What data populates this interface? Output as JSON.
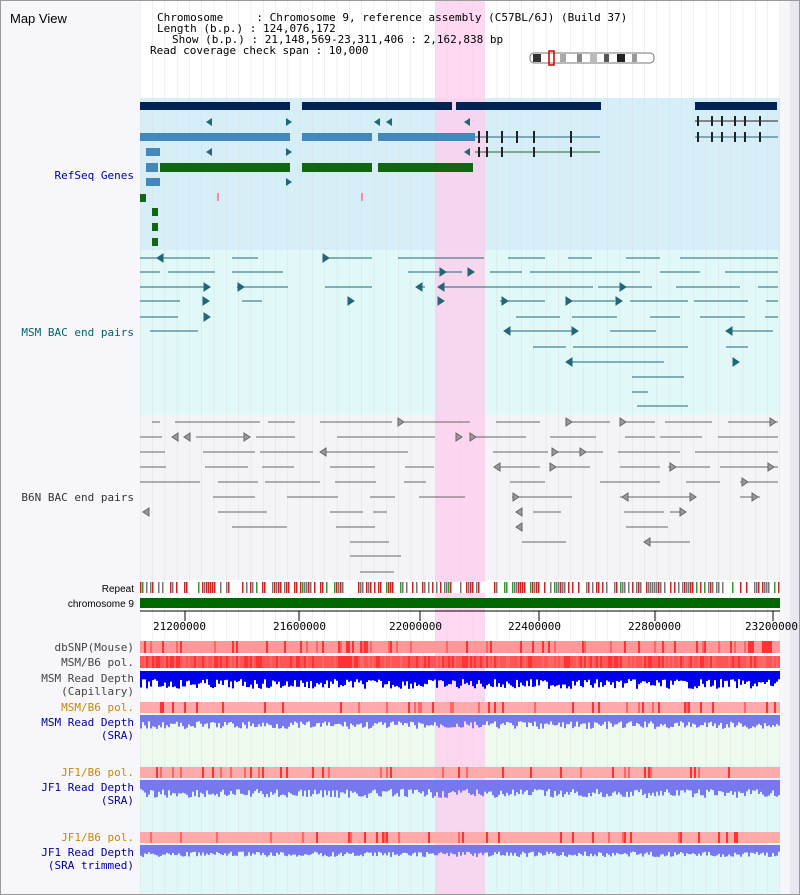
{
  "title": "Map View",
  "header": {
    "chromosome": "Chromosome     : Chromosome 9, reference assembly (C57BL/6J) (Build 37)",
    "length": "Length (b.p.) : 124,076,172",
    "show": "Show (b.p.) : 21,148,569-23,311,406 : 2,162,838 bp",
    "coverage": "Read coverage check span : 10,000"
  },
  "tracks": {
    "refseq": "RefSeq Genes",
    "msm_bac": "MSM BAC end pairs",
    "b6n_bac": "B6N BAC end pairs",
    "repeat": "Repeat",
    "chromosome": "chromosome 9",
    "dbsnp": "dbSNP(Mouse)",
    "msm_pol": "MSM/B6 pol.",
    "msm_cap_1": "MSM Read Depth",
    "msm_cap_2": "(Capillary)",
    "msm_sra_pol": "MSM/B6 pol.",
    "msm_sra_1": "MSM Read Depth",
    "msm_sra_2": "(SRA)",
    "jf1_pol": "JF1/B6 pol.",
    "jf1_sra_1": "JF1 Read Depth",
    "jf1_sra_2": "(SRA)",
    "jf1t_pol": "JF1/B6 pol.",
    "jf1t_1": "JF1 Read Depth",
    "jf1t_2": "(SRA trimmed)"
  },
  "axis_ticks": [
    "21200000",
    "21600000",
    "22000000",
    "22400000",
    "22800000",
    "23200000"
  ],
  "colors": {
    "refseq_label": "#000099",
    "msm_label": "#006666",
    "b6n_label": "#333333",
    "sra_label": "#000099",
    "pol_label": "#cc8800",
    "highlight": "#ffccee",
    "refseq_bg": "#d6eef8",
    "msm_bg": "#e0f8f8",
    "b6n_bg": "#f2f2f6",
    "chromosome_bar": "#006600"
  }
}
